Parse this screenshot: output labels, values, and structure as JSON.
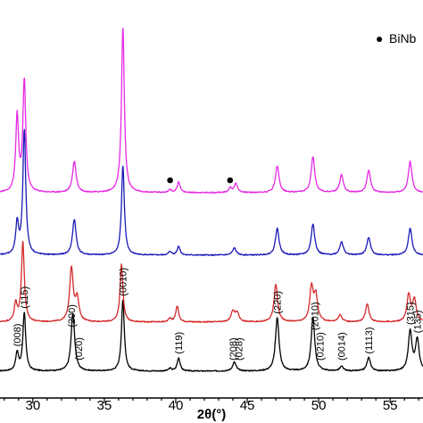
{
  "chart_data": {
    "type": "line",
    "title": "",
    "xlabel": "2θ(°)",
    "ylabel": "",
    "xlim": [
      27.7,
      57.3
    ],
    "x_ticks": [
      30,
      35,
      40,
      45,
      50,
      55
    ],
    "grid": false,
    "legend": {
      "marker": "●",
      "text": "BiNb",
      "placement": "top-right"
    },
    "marker_positions_x": [
      39.6,
      43.8
    ],
    "peak_labels": [
      {
        "x": 28.9,
        "text": "(008)"
      },
      {
        "x": 29.4,
        "text": "(115)"
      },
      {
        "x": 32.7,
        "text": "(200)"
      },
      {
        "x": 33.2,
        "text": "(020)"
      },
      {
        "x": 36.3,
        "text": "(0010)"
      },
      {
        "x": 40.2,
        "text": "(119)"
      },
      {
        "x": 44.0,
        "text": "(208)"
      },
      {
        "x": 44.4,
        "text": "(028)"
      },
      {
        "x": 47.1,
        "text": "(220)"
      },
      {
        "x": 49.7,
        "text": "(2010)"
      },
      {
        "x": 50.1,
        "text": "(0210)"
      },
      {
        "x": 51.6,
        "text": "(0014)"
      },
      {
        "x": 53.5,
        "text": "(1113)"
      },
      {
        "x": 56.4,
        "text": "(315)"
      },
      {
        "x": 56.9,
        "text": "(135)"
      }
    ],
    "series": [
      {
        "color": "#000000",
        "baseline": 0,
        "peaks": [
          {
            "x": 28.9,
            "h": 20,
            "w": 0.12
          },
          {
            "x": 29.4,
            "h": 65,
            "w": 0.12
          },
          {
            "x": 32.8,
            "h": 65,
            "w": 0.15
          },
          {
            "x": 36.3,
            "h": 80,
            "w": 0.12
          },
          {
            "x": 39.6,
            "h": 3,
            "w": 0.12
          },
          {
            "x": 40.2,
            "h": 15,
            "w": 0.12
          },
          {
            "x": 44.1,
            "h": 10,
            "w": 0.15
          },
          {
            "x": 47.1,
            "h": 60,
            "w": 0.15
          },
          {
            "x": 49.6,
            "h": 60,
            "w": 0.15
          },
          {
            "x": 51.6,
            "h": 5,
            "w": 0.15
          },
          {
            "x": 53.5,
            "h": 15,
            "w": 0.15
          },
          {
            "x": 56.4,
            "h": 45,
            "w": 0.15
          },
          {
            "x": 56.9,
            "h": 35,
            "w": 0.15
          }
        ]
      },
      {
        "color": "#d42a2a",
        "baseline": 55,
        "peaks": [
          {
            "x": 28.8,
            "h": 20,
            "w": 0.12
          },
          {
            "x": 29.3,
            "h": 90,
            "w": 0.12
          },
          {
            "x": 32.7,
            "h": 60,
            "w": 0.15
          },
          {
            "x": 33.1,
            "h": 25,
            "w": 0.15
          },
          {
            "x": 36.2,
            "h": 65,
            "w": 0.12
          },
          {
            "x": 39.6,
            "h": 4,
            "w": 0.12
          },
          {
            "x": 40.1,
            "h": 18,
            "w": 0.12
          },
          {
            "x": 44.0,
            "h": 12,
            "w": 0.15
          },
          {
            "x": 44.3,
            "h": 10,
            "w": 0.15
          },
          {
            "x": 47.0,
            "h": 42,
            "w": 0.15
          },
          {
            "x": 49.5,
            "h": 38,
            "w": 0.15
          },
          {
            "x": 49.8,
            "h": 28,
            "w": 0.15
          },
          {
            "x": 51.5,
            "h": 8,
            "w": 0.15
          },
          {
            "x": 53.4,
            "h": 20,
            "w": 0.15
          },
          {
            "x": 56.3,
            "h": 30,
            "w": 0.15
          },
          {
            "x": 56.7,
            "h": 25,
            "w": 0.15
          }
        ]
      },
      {
        "color": "#1a1ab8",
        "baseline": 130,
        "peaks": [
          {
            "x": 28.9,
            "h": 35,
            "w": 0.12
          },
          {
            "x": 29.4,
            "h": 140,
            "w": 0.12
          },
          {
            "x": 32.9,
            "h": 40,
            "w": 0.15
          },
          {
            "x": 36.3,
            "h": 100,
            "w": 0.12
          },
          {
            "x": 39.6,
            "h": 4,
            "w": 0.12
          },
          {
            "x": 40.2,
            "h": 10,
            "w": 0.12
          },
          {
            "x": 44.1,
            "h": 8,
            "w": 0.15
          },
          {
            "x": 47.1,
            "h": 30,
            "w": 0.15
          },
          {
            "x": 49.6,
            "h": 35,
            "w": 0.15
          },
          {
            "x": 51.6,
            "h": 15,
            "w": 0.15
          },
          {
            "x": 53.5,
            "h": 20,
            "w": 0.15
          },
          {
            "x": 56.4,
            "h": 30,
            "w": 0.15
          }
        ]
      },
      {
        "color": "#e629e6",
        "baseline": 200,
        "peaks": [
          {
            "x": 28.9,
            "h": 85,
            "w": 0.12
          },
          {
            "x": 29.4,
            "h": 125,
            "w": 0.12
          },
          {
            "x": 32.9,
            "h": 35,
            "w": 0.15
          },
          {
            "x": 36.3,
            "h": 185,
            "w": 0.12
          },
          {
            "x": 39.6,
            "h": 3,
            "w": 0.12
          },
          {
            "x": 40.2,
            "h": 12,
            "w": 0.12
          },
          {
            "x": 43.8,
            "h": 5,
            "w": 0.12
          },
          {
            "x": 44.2,
            "h": 10,
            "w": 0.15
          },
          {
            "x": 47.1,
            "h": 30,
            "w": 0.15
          },
          {
            "x": 49.6,
            "h": 40,
            "w": 0.15
          },
          {
            "x": 51.6,
            "h": 20,
            "w": 0.15
          },
          {
            "x": 53.5,
            "h": 25,
            "w": 0.15
          },
          {
            "x": 56.4,
            "h": 35,
            "w": 0.15
          }
        ]
      }
    ]
  }
}
